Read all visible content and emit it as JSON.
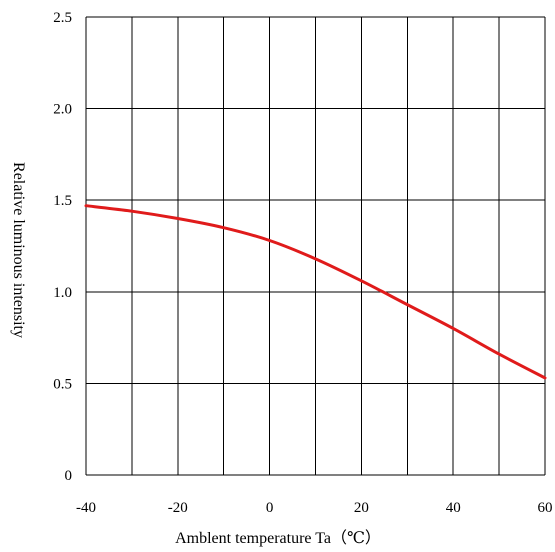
{
  "chart_data": {
    "type": "line",
    "title": "",
    "xlabel": "Amblent temperature Ta（℃）",
    "ylabel": "Relative luminous intensity",
    "xlim": [
      -40,
      60
    ],
    "ylim": [
      0,
      2.5
    ],
    "x_ticks": [
      -40,
      -20,
      0,
      20,
      40,
      60
    ],
    "x_tick_labels": [
      "-40",
      "-20",
      "0",
      "20",
      "40",
      "60"
    ],
    "x_gridlines": [
      -40,
      -30,
      -20,
      -10,
      0,
      10,
      20,
      30,
      40,
      50,
      60
    ],
    "y_ticks": [
      0,
      0.5,
      1.0,
      1.5,
      2.0,
      2.5
    ],
    "y_tick_labels": [
      "0",
      "0.5",
      "1.0",
      "1.5",
      "2.0",
      "2.5"
    ],
    "grid": true,
    "series": [
      {
        "color": "#e01b1b",
        "x": [
          -40,
          -30,
          -20,
          -10,
          0,
          10,
          20,
          30,
          40,
          50,
          60
        ],
        "y": [
          1.47,
          1.44,
          1.4,
          1.35,
          1.28,
          1.18,
          1.06,
          0.93,
          0.8,
          0.66,
          0.53
        ]
      }
    ]
  }
}
